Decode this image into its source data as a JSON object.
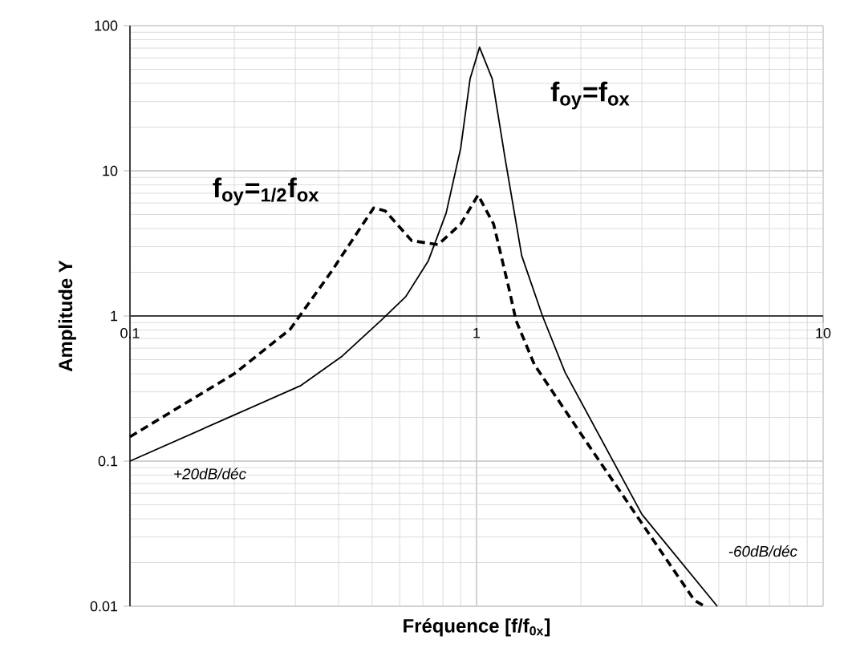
{
  "chart_data": {
    "type": "line",
    "xlabel": "Fréquence [f/f$_{0x}$]",
    "ylabel": "Amplitude  Y",
    "log": "xy",
    "grid": true,
    "marker": "none",
    "xlim": [
      0.1,
      10
    ],
    "ylim": [
      0.01,
      100
    ],
    "xticks": [
      {
        "value": 0.1,
        "label": "0.1"
      },
      1,
      10
    ],
    "yticks": [
      0.01,
      0.1,
      1,
      10,
      100
    ],
    "series": [
      {
        "name": "f$_{oy}$=f$_{ox}$",
        "color": "#000000",
        "line_style": "solid",
        "x": [
          0.1,
          0.202,
          0.31,
          0.41,
          0.53,
          0.625,
          0.726,
          0.817,
          0.9,
          0.958,
          1.02,
          1.11,
          1.21,
          1.35,
          1.55,
          1.8,
          3.0,
          4.95
        ],
        "values": [
          0.1,
          0.21,
          0.33,
          0.53,
          0.93,
          1.36,
          2.4,
          5.1,
          14.3,
          43,
          71,
          43,
          12,
          2.6,
          1,
          0.41,
          0.043,
          0.01
        ]
      },
      {
        "name": "f$_{oy}$=$_{1/2}$f$_{ox}$",
        "color": "#000000",
        "line_style": "dashed",
        "x": [
          0.1,
          0.2,
          0.29,
          0.38,
          0.505,
          0.545,
          0.65,
          0.775,
          0.9,
          1.01,
          1.12,
          1.24,
          1.3,
          1.47,
          2.1,
          4.25,
          4.55
        ],
        "values": [
          0.147,
          0.4,
          0.81,
          2.0,
          5.55,
          5.3,
          3.3,
          3.1,
          4.3,
          6.8,
          4.3,
          1.55,
          0.93,
          0.46,
          0.13,
          0.011,
          0.01
        ]
      }
    ],
    "annotations": [
      "+20dB/déc",
      "-60dB/déc"
    ]
  }
}
